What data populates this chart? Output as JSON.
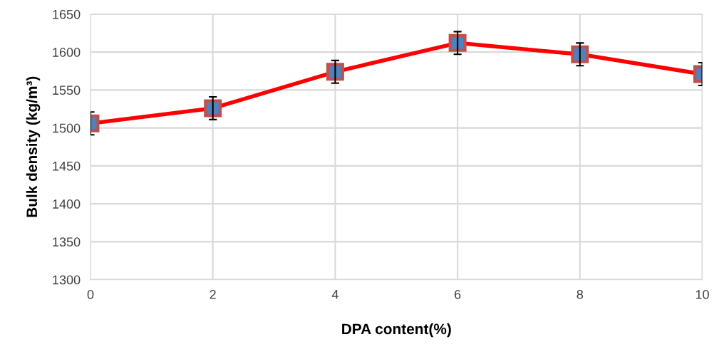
{
  "chart_data": {
    "type": "line",
    "xlabel": "DPA content(%)",
    "ylabel": "Bulk density (kg/m³)",
    "x": [
      0,
      2,
      4,
      6,
      8,
      10
    ],
    "series": [
      {
        "color": "#ff0000",
        "values": [
          1506,
          1526,
          1574,
          1612,
          1597,
          1571
        ],
        "errors": [
          15,
          15,
          15,
          15,
          15,
          15
        ]
      }
    ],
    "xlim": [
      0,
      10
    ],
    "xticks": [
      0,
      2,
      4,
      6,
      8,
      10
    ],
    "ylim": [
      1300,
      1650
    ],
    "yticks": [
      1300,
      1350,
      1400,
      1450,
      1500,
      1550,
      1600,
      1650
    ],
    "grid": true,
    "marker": "square",
    "line_style": "solid"
  }
}
